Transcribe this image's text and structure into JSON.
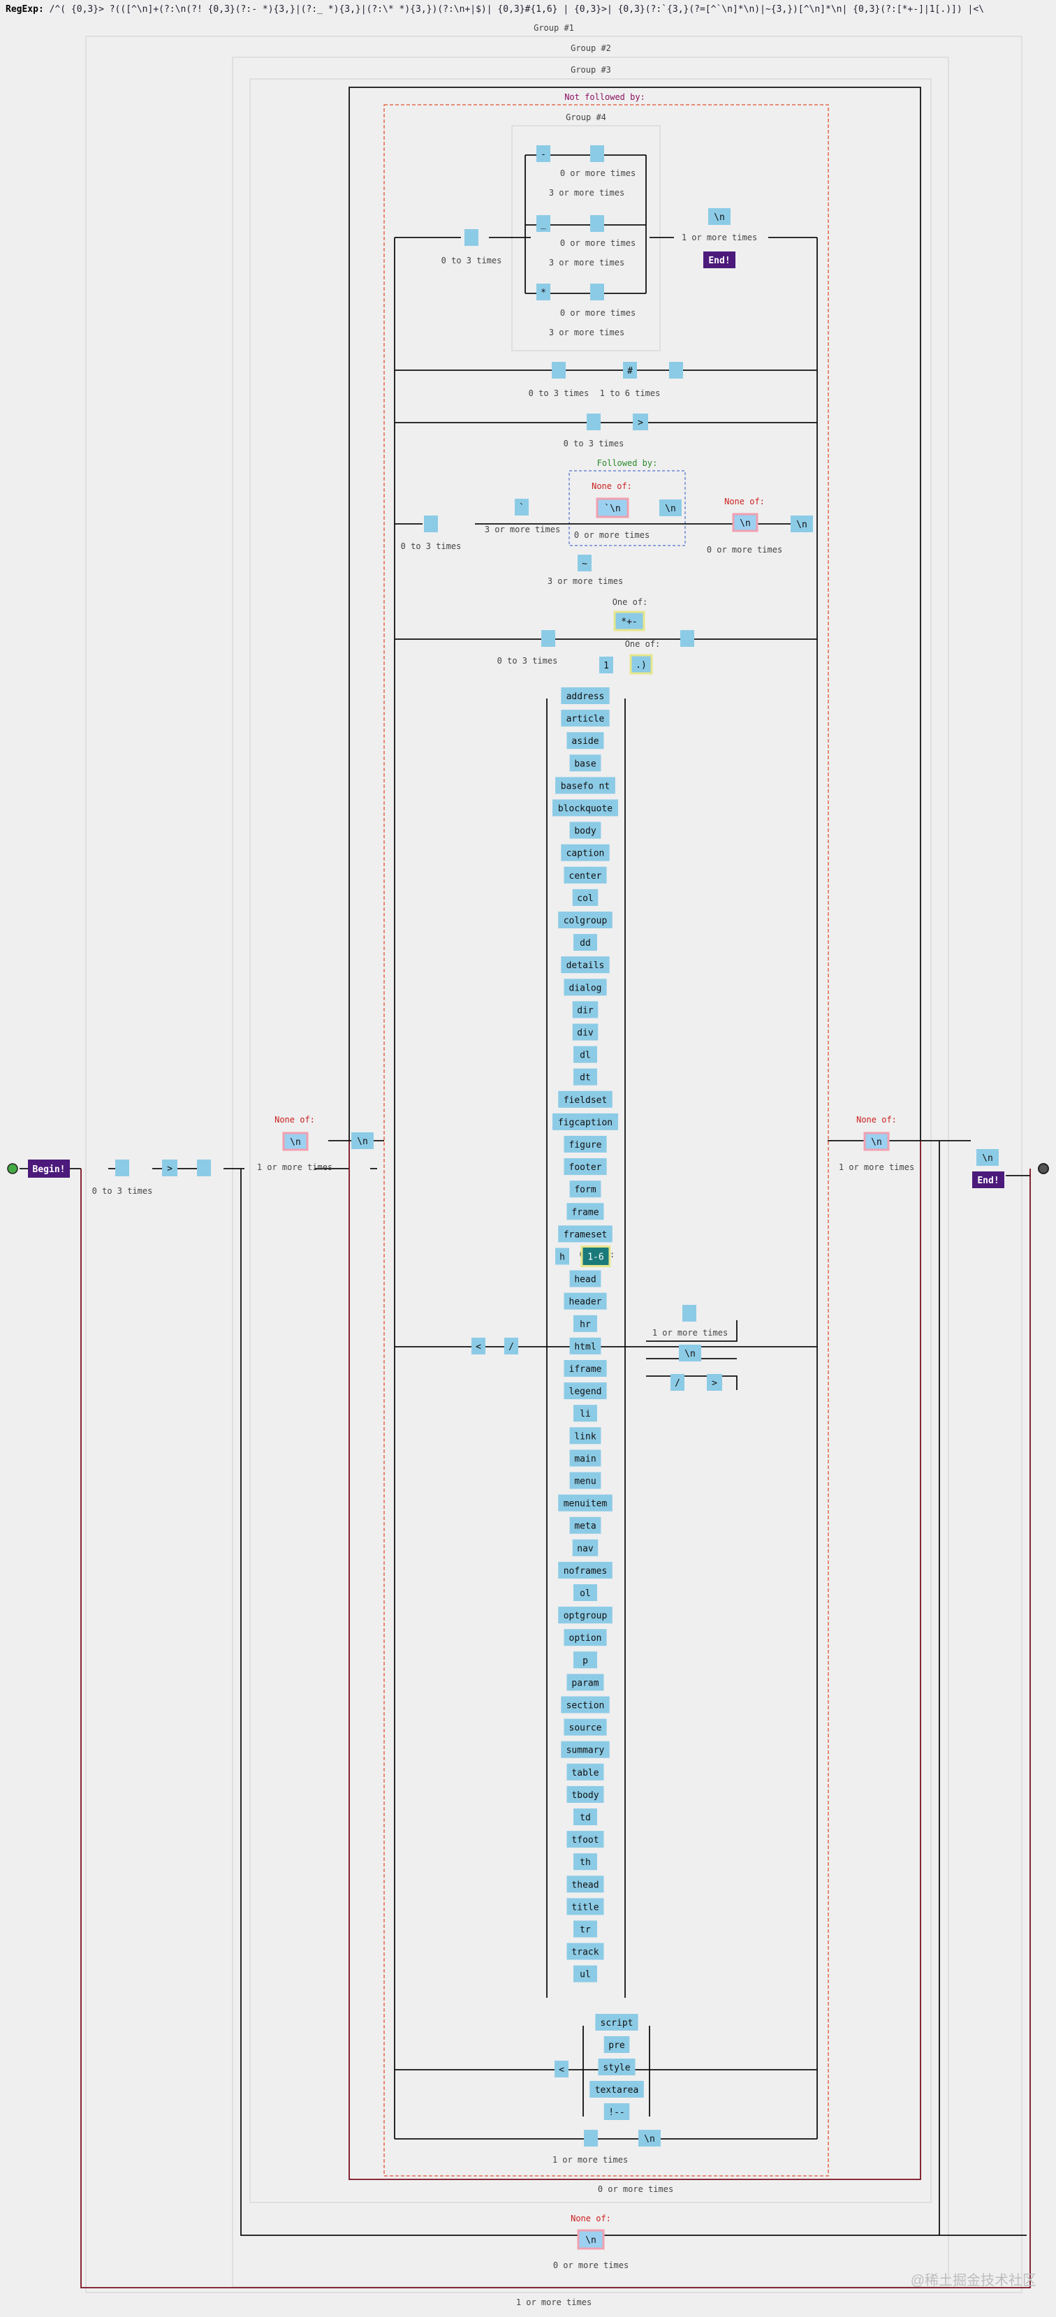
{
  "header": {
    "label": "RegExp:",
    "regex": "/^( {0,3}> ?(([^\\n]+(?:\\n(?! {0,3}(?:- *){3,}|(?:_ *){3,}|(?:\\* *){3,})(?:\\n+|$)| {0,3}#{1,6} | {0,3}>| {0,3}(?:`{3,}(?=[^`\\n]*\\n)|~{3,})[^\\n]*\\n| {0,3}(?:[*+-]|1[.)]) |<\\"
  },
  "groups": {
    "g1": "Group #1",
    "g2": "Group #2",
    "g3": "Group #3",
    "g4": "Group #4",
    "not_followed": "Not followed by:",
    "followed": "Followed by:"
  },
  "captions": {
    "zero_to_three": "0 to 3 times",
    "zero_or_more": "0 or more times",
    "three_or_more": "3 or more times",
    "one_or_more": "1 or more times",
    "one_to_six": "1 to 6 times",
    "none_of": "None of:",
    "one_of": "One of:"
  },
  "terminals": {
    "begin": "Begin!",
    "end": "End!"
  },
  "literals": {
    "space": " ",
    "gt": ">",
    "newline": "\\n",
    "dash": "-",
    "underscore": "_",
    "star": "*",
    "hash": "#",
    "backtick": "`",
    "backtick_nl": "`\\n",
    "tilde": "~",
    "star_plus_minus": "*+-",
    "one": "1",
    "dot_paren": ".)",
    "lt": "<",
    "slash": "/",
    "h": "h",
    "one_six": "1-6",
    "excl_dashes": "!--"
  },
  "tags": [
    "address",
    "article",
    "aside",
    "base",
    "basefo nt",
    "blockquote",
    "body",
    "caption",
    "center",
    "col",
    "colgroup",
    "dd",
    "details",
    "dialog",
    "dir",
    "div",
    "dl",
    "dt",
    "fieldset",
    "figcaption",
    "figure",
    "footer",
    "form",
    "frame",
    "frameset",
    "H_ONE_OF",
    "head",
    "header",
    "hr",
    "html",
    "iframe",
    "legend",
    "li",
    "link",
    "main",
    "menu",
    "menuitem",
    "meta",
    "nav",
    "noframes",
    "ol",
    "optgroup",
    "option",
    "p",
    "param",
    "section",
    "source",
    "summary",
    "table",
    "tbody",
    "td",
    "tfoot",
    "th",
    "thead",
    "title",
    "tr",
    "track",
    "ul"
  ],
  "raw_tags": [
    "script",
    "pre",
    "style",
    "textarea",
    "!--"
  ],
  "watermark": "@稀土掘金技术社区"
}
